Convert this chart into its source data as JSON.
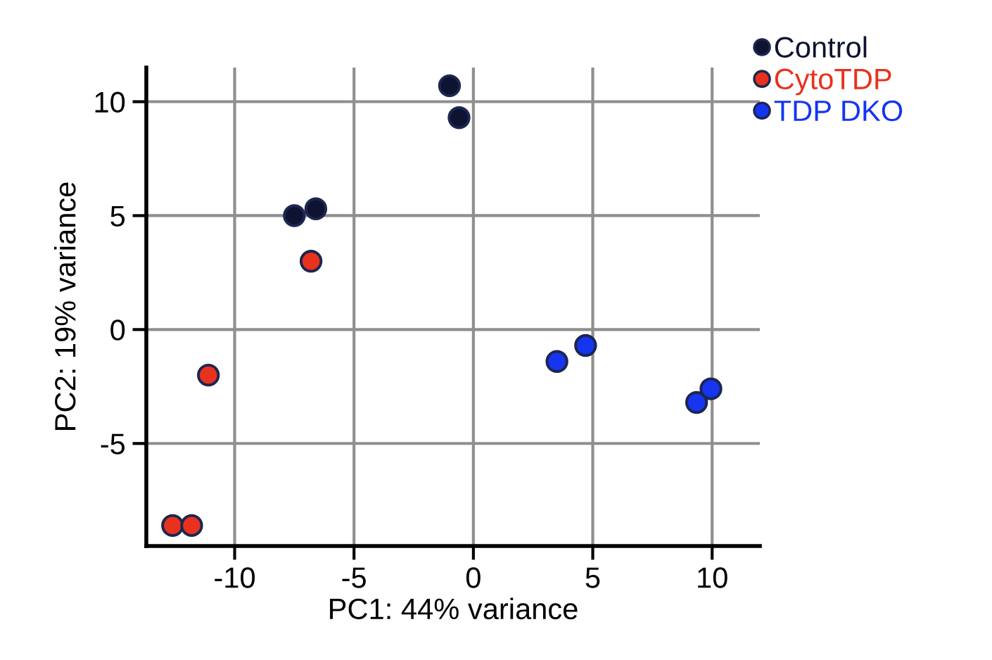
{
  "chart_data": {
    "type": "scatter",
    "xlabel": "PC1: 44% variance",
    "ylabel": "PC2: 19% variance",
    "xlim": [
      -13.7,
      12
    ],
    "ylim": [
      -9.5,
      11.5
    ],
    "xticks": [
      -10,
      -5,
      0,
      5,
      10
    ],
    "yticks": [
      -5,
      0,
      5,
      10
    ],
    "grid": true,
    "legend": "top right",
    "marker": "circle",
    "series": [
      {
        "name": "Control",
        "color": "#0d1330",
        "x": [
          -1.0,
          -0.6,
          -7.5,
          -6.6
        ],
        "values": [
          10.7,
          9.3,
          5.0,
          5.3
        ]
      },
      {
        "name": "CytoTDP",
        "color": "#e8321e",
        "x": [
          -6.8,
          -11.1,
          -12.6,
          -11.8
        ],
        "values": [
          3.0,
          -2.0,
          -8.6,
          -8.6
        ]
      },
      {
        "name": "TDP DKO",
        "color": "#1535f0",
        "x": [
          3.5,
          4.7,
          9.35,
          9.95
        ],
        "values": [
          -1.4,
          -0.7,
          -3.2,
          -2.6
        ]
      }
    ]
  }
}
